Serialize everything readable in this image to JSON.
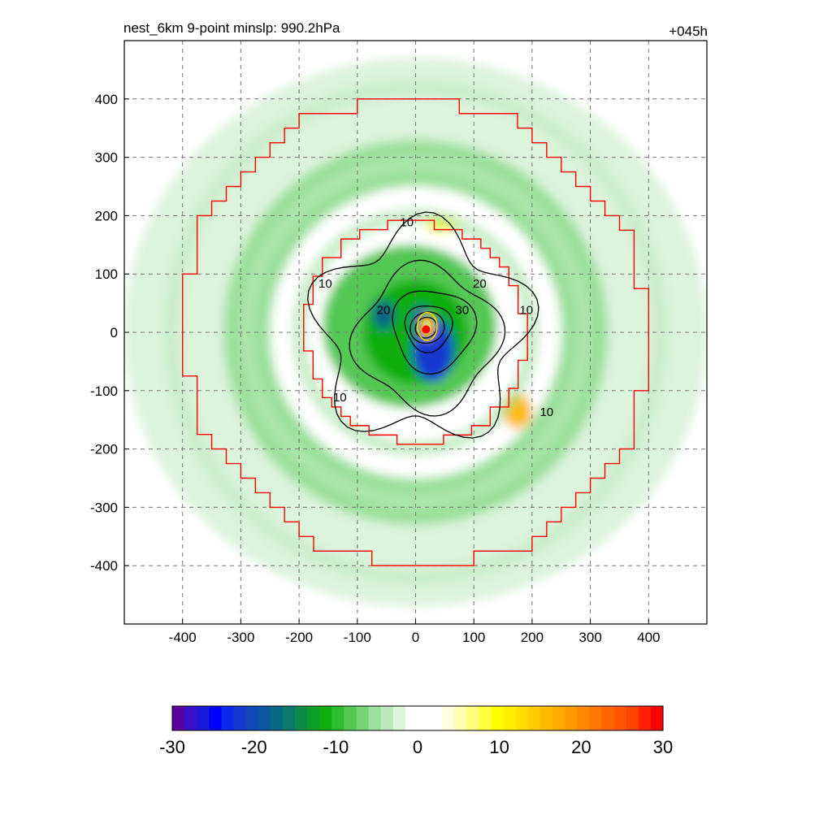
{
  "chart_data": {
    "type": "heatmap",
    "title_left": "nest_6km  9-point minslp: 990.2hPa",
    "title_right": "+045h",
    "xlabel": "",
    "ylabel": "",
    "xlim": [
      -500,
      500
    ],
    "ylim": [
      -500,
      500
    ],
    "x_ticks": [
      -400,
      -300,
      -200,
      -100,
      0,
      100,
      200,
      300,
      400
    ],
    "y_ticks": [
      -400,
      -300,
      -200,
      -100,
      0,
      100,
      200,
      300,
      400
    ],
    "grid": true,
    "center_marker": {
      "x": 18,
      "y": 5,
      "color": "#ff0000"
    },
    "filled_field": {
      "description_levels": [
        -30,
        30
      ],
      "blobs": [
        {
          "cx": 0,
          "cy": 0,
          "rx": 500,
          "ry": 470,
          "value": -3
        },
        {
          "cx": 0,
          "cy": 0,
          "rx": 330,
          "ry": 330,
          "value": -6
        },
        {
          "cx": 0,
          "cy": 0,
          "rx": 250,
          "ry": 250,
          "value": 0
        },
        {
          "cx": -10,
          "cy": 10,
          "rx": 150,
          "ry": 140,
          "value": -8
        },
        {
          "cx": 0,
          "cy": 0,
          "rx": 90,
          "ry": 90,
          "value": -12
        },
        {
          "cx": 30,
          "cy": -30,
          "rx": 35,
          "ry": 55,
          "value": -22
        },
        {
          "cx": -55,
          "cy": 30,
          "rx": 20,
          "ry": 25,
          "value": -18
        },
        {
          "cx": 10,
          "cy": 20,
          "rx": 15,
          "ry": 25,
          "value": -20
        },
        {
          "cx": 175,
          "cy": -135,
          "rx": 25,
          "ry": 30,
          "value": 15
        },
        {
          "cx": 45,
          "cy": 185,
          "rx": 30,
          "ry": 15,
          "value": 8
        },
        {
          "cx": 20,
          "cy": 10,
          "rx": 10,
          "ry": 20,
          "value": 10
        }
      ]
    },
    "contours": {
      "levels": [
        10,
        20,
        30
      ],
      "labels": [
        {
          "text": "10",
          "x": -15,
          "y": 190
        },
        {
          "text": "10",
          "x": -155,
          "y": 85
        },
        {
          "text": "10",
          "x": 190,
          "y": 40
        },
        {
          "text": "10",
          "x": -130,
          "y": -110
        },
        {
          "text": "10",
          "x": 225,
          "y": -135
        },
        {
          "text": "20",
          "x": 110,
          "y": 85
        },
        {
          "text": "20",
          "x": -55,
          "y": 40
        },
        {
          "text": "30",
          "x": 80,
          "y": 40
        }
      ]
    },
    "colorbar": {
      "min": -30,
      "max": 30,
      "tick_labels": [
        "-30",
        "-20",
        "-10",
        "0",
        "10",
        "20",
        "30"
      ],
      "colors": [
        "#5a00a0",
        "#3a10c8",
        "#1a1ad8",
        "#0000ff",
        "#0a28e8",
        "#1438d0",
        "#1048b8",
        "#0c58a0",
        "#086888",
        "#0a7a6a",
        "#0a8c48",
        "#0c9e28",
        "#10ae10",
        "#30bc30",
        "#52c852",
        "#76d476",
        "#9ae09a",
        "#bce9bc",
        "#dcf3dc",
        "#ffffff",
        "#ffffff",
        "#ffffff",
        "#ffffe0",
        "#ffffb0",
        "#ffff80",
        "#ffff40",
        "#ffff00",
        "#ffee00",
        "#ffdd00",
        "#ffcc00",
        "#ffbb00",
        "#ffaa00",
        "#ff9900",
        "#ff8800",
        "#ff7700",
        "#ff6600",
        "#ff5500",
        "#ff4400",
        "#ff2200",
        "#ff0000"
      ]
    },
    "boundary_color": "#ff0000"
  }
}
